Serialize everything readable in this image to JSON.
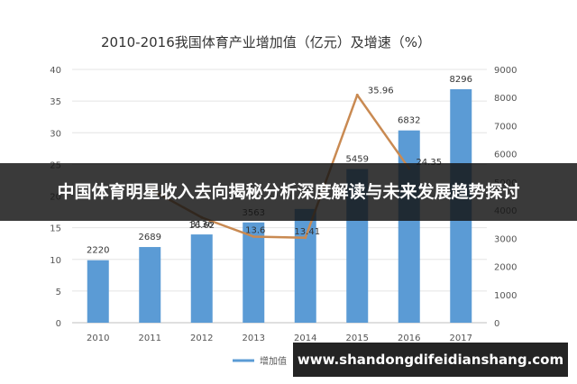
{
  "chart_data": {
    "type": "bar",
    "title": "2010-2016我国体育产业增加值（亿元）及增速（%）",
    "categories": [
      "2010",
      "2011",
      "2012",
      "2013",
      "2014",
      "2015",
      "2016",
      "2017"
    ],
    "series": [
      {
        "axis": "right",
        "chart": "bar",
        "color": "#5b9bd5",
        "values": [
          2220,
          2689,
          3136,
          3563,
          4041,
          5459,
          6832,
          8296
        ]
      },
      {
        "axis": "left",
        "chart": "line",
        "color": "#c98a52",
        "values": [
          null,
          21.13,
          16.62,
          13.6,
          13.41,
          35.96,
          24.35,
          null
        ]
      }
    ],
    "bar_labels": [
      "2220",
      "2689",
      "3136",
      "3563",
      "",
      "5459",
      "6832",
      "8296"
    ],
    "line_labels": [
      "",
      "",
      "16.62",
      "13.6",
      "13.41",
      "35.96",
      "24.35",
      ""
    ],
    "left_ticks": [
      "0",
      "5",
      "10",
      "15",
      "20",
      "25",
      "30",
      "35",
      "40"
    ],
    "right_ticks": [
      "0",
      "1000",
      "2000",
      "3000",
      "4000",
      "5000",
      "6000",
      "7000",
      "8000",
      "9000"
    ],
    "ylim_left": [
      0,
      40
    ],
    "ylim_right": [
      0,
      9000
    ],
    "legend_text": "增加值",
    "legend_position": "bottom",
    "grid": true
  },
  "banner": {
    "text": "中国体育明星收入去向揭秘分析深度解读与未来发展趋势探讨"
  },
  "watermark": {
    "text": "www.shandongdifeidianshang.com"
  }
}
